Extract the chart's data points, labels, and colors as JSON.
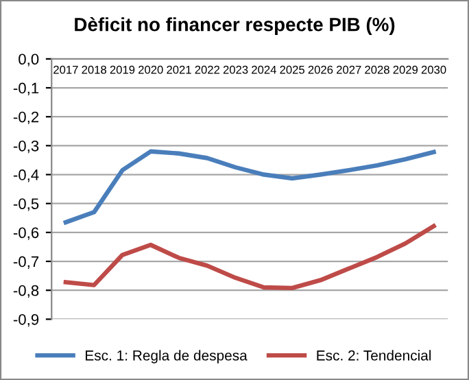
{
  "chart_data": {
    "type": "line",
    "title": "Dèficit no financer respecte PIB (%)",
    "categories": [
      "2017",
      "2018",
      "2019",
      "2020",
      "2021",
      "2022",
      "2023",
      "2024",
      "2025",
      "2026",
      "2027",
      "2028",
      "2029",
      "2030"
    ],
    "series": [
      {
        "name": "Esc. 1: Regla de despesa",
        "color": "#4a7ebb",
        "values": [
          -0.565,
          -0.53,
          -0.385,
          -0.32,
          -0.327,
          -0.343,
          -0.375,
          -0.4,
          -0.413,
          -0.4,
          -0.385,
          -0.368,
          -0.347,
          -0.322
        ]
      },
      {
        "name": "Esc. 2: Tendencial",
        "color": "#be4b48",
        "values": [
          -0.772,
          -0.782,
          -0.678,
          -0.643,
          -0.688,
          -0.715,
          -0.757,
          -0.79,
          -0.792,
          -0.765,
          -0.725,
          -0.685,
          -0.638,
          -0.578
        ]
      }
    ],
    "ylim": [
      -0.9,
      0
    ],
    "yticks": [
      {
        "value": 0,
        "label": "0,0"
      },
      {
        "value": -0.1,
        "label": "-0,1"
      },
      {
        "value": -0.2,
        "label": "-0,2"
      },
      {
        "value": -0.3,
        "label": "-0,3"
      },
      {
        "value": -0.4,
        "label": "-0,4"
      },
      {
        "value": -0.5,
        "label": "-0,5"
      },
      {
        "value": -0.6,
        "label": "-0,6"
      },
      {
        "value": -0.7,
        "label": "-0,7"
      },
      {
        "value": -0.8,
        "label": "-0,8"
      },
      {
        "value": -0.9,
        "label": "-0,9"
      }
    ],
    "grid": "y",
    "legend": "bottom",
    "marker": "none",
    "line_style": "solid"
  }
}
